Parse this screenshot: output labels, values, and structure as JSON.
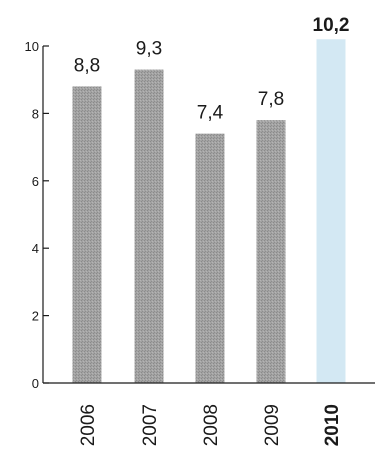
{
  "chart_data": {
    "type": "bar",
    "title": "",
    "xlabel": "",
    "ylabel": "",
    "categories": [
      "2006",
      "2007",
      "2008",
      "2009",
      "2010"
    ],
    "values": [
      8.8,
      9.3,
      7.4,
      7.8,
      10.2
    ],
    "data_labels": [
      "8,8",
      "9,3",
      "7,4",
      "7,8",
      "10,2"
    ],
    "ylim": [
      0,
      10
    ],
    "yticks": [
      0,
      2,
      4,
      6,
      8,
      10
    ],
    "grid": false,
    "legend": "none",
    "colors": {
      "default_bar": "#9a9a9a",
      "highlight_bar": "#d3e8f3",
      "highlight_text": "#1b78c2",
      "text": "#1a1a1a"
    },
    "highlight_index": 4
  }
}
